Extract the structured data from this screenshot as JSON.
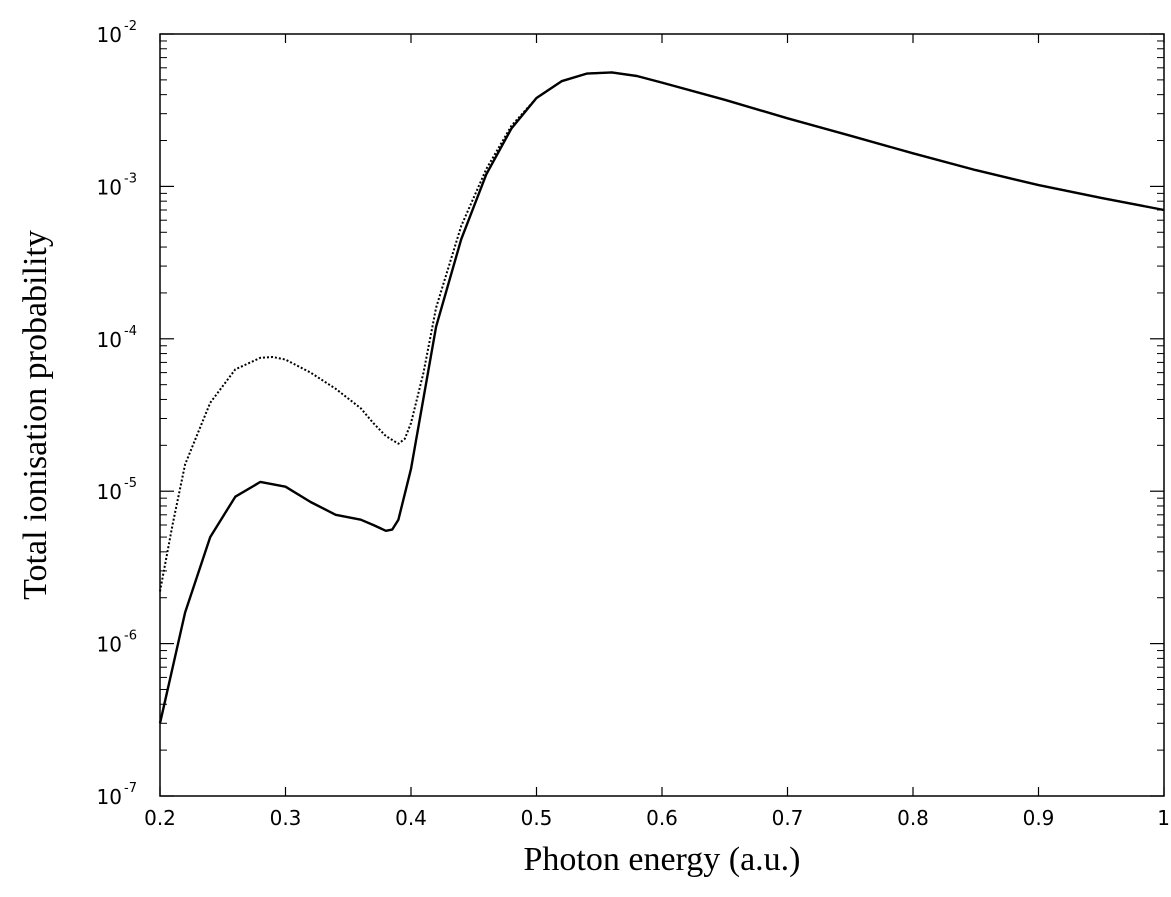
{
  "chart_data": {
    "type": "line",
    "title": "",
    "xlabel": "Photon energy (a.u.)",
    "ylabel": "Total ionisation probability",
    "xlim": [
      0.2,
      1.0
    ],
    "ylim": [
      1e-07,
      0.01
    ],
    "yscale": "log",
    "x_ticks": [
      {
        "value": 0.2,
        "label": "0.2"
      },
      {
        "value": 0.3,
        "label": "0.3"
      },
      {
        "value": 0.4,
        "label": "0.4"
      },
      {
        "value": 0.5,
        "label": "0.5"
      },
      {
        "value": 0.6,
        "label": "0.6"
      },
      {
        "value": 0.7,
        "label": "0.7"
      },
      {
        "value": 0.8,
        "label": "0.8"
      },
      {
        "value": 0.9,
        "label": "0.9"
      },
      {
        "value": 1.0,
        "label": "1"
      }
    ],
    "y_ticks": [
      {
        "exp": -7,
        "base": "10",
        "sup": "-7"
      },
      {
        "exp": -6,
        "base": "10",
        "sup": "-6"
      },
      {
        "exp": -5,
        "base": "10",
        "sup": "-5"
      },
      {
        "exp": -4,
        "base": "10",
        "sup": "-4"
      },
      {
        "exp": -3,
        "base": "10",
        "sup": "-3"
      },
      {
        "exp": -2,
        "base": "10",
        "sup": "-2"
      }
    ],
    "grid": false,
    "legend": "none",
    "series": [
      {
        "style": "solid",
        "color": "#000000",
        "x": [
          0.2,
          0.22,
          0.24,
          0.26,
          0.28,
          0.3,
          0.32,
          0.34,
          0.36,
          0.37,
          0.38,
          0.385,
          0.39,
          0.4,
          0.42,
          0.44,
          0.46,
          0.48,
          0.5,
          0.52,
          0.54,
          0.56,
          0.58,
          0.6,
          0.65,
          0.7,
          0.75,
          0.8,
          0.85,
          0.9,
          0.95,
          1.0
        ],
        "y": [
          3e-07,
          1.6e-06,
          5e-06,
          9.2e-06,
          1.15e-05,
          1.07e-05,
          8.5e-06,
          7e-06,
          6.5e-06,
          6e-06,
          5.5e-06,
          5.6e-06,
          6.5e-06,
          1.4e-05,
          0.00012,
          0.00045,
          0.0012,
          0.0024,
          0.0038,
          0.0049,
          0.0055,
          0.0056,
          0.0053,
          0.0048,
          0.0037,
          0.0028,
          0.00215,
          0.00165,
          0.00128,
          0.00102,
          0.00084,
          0.0007
        ]
      },
      {
        "style": "dotted",
        "color": "#000000",
        "x": [
          0.2,
          0.21,
          0.22,
          0.24,
          0.26,
          0.28,
          0.29,
          0.3,
          0.32,
          0.34,
          0.36,
          0.37,
          0.38,
          0.39,
          0.395,
          0.4,
          0.41,
          0.42,
          0.44,
          0.46,
          0.48,
          0.5,
          0.52,
          0.54,
          0.56,
          0.58,
          0.6,
          0.65,
          0.7,
          0.75,
          0.8,
          0.85,
          0.9,
          0.95,
          1.0
        ],
        "y": [
          2.2e-06,
          6e-06,
          1.5e-05,
          3.8e-05,
          6.3e-05,
          7.5e-05,
          7.6e-05,
          7.3e-05,
          6e-05,
          4.7e-05,
          3.5e-05,
          2.8e-05,
          2.3e-05,
          2.05e-05,
          2.2e-05,
          2.8e-05,
          6e-05,
          0.00016,
          0.00055,
          0.0013,
          0.0025,
          0.0038,
          0.0049,
          0.0055,
          0.0056,
          0.0053,
          0.0048,
          0.0037,
          0.0028,
          0.00215,
          0.00165,
          0.00128,
          0.00102,
          0.00084,
          0.0007
        ]
      }
    ]
  }
}
